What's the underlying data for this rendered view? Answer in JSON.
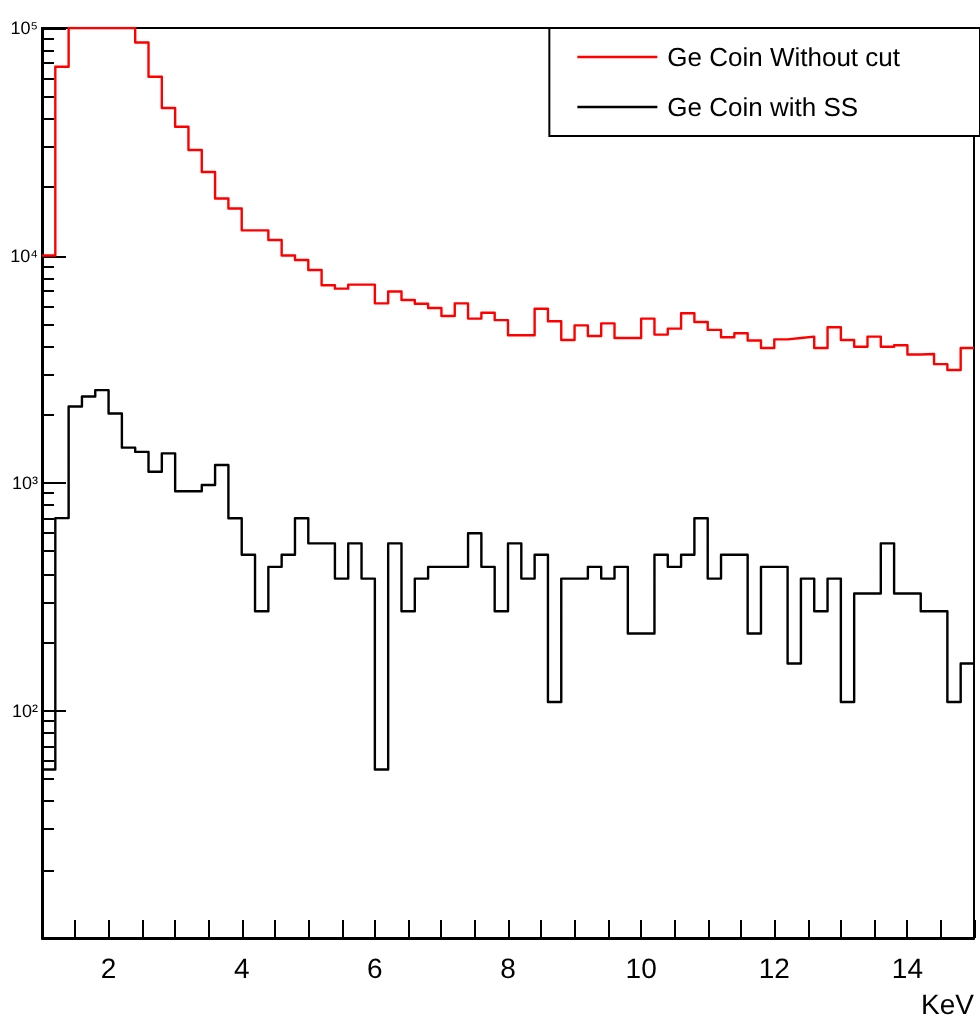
{
  "chart_data": {
    "type": "histogram",
    "xlabel": "KeV",
    "log": "y",
    "legend": "top right",
    "bins": [
      1.0,
      1.2,
      1.4,
      1.6,
      1.8,
      2.0,
      2.2,
      2.4,
      2.6,
      2.8,
      3.0,
      3.2,
      3.4,
      3.6,
      3.8,
      4.0,
      4.2,
      4.4,
      4.6,
      4.8,
      5.0,
      5.2,
      5.4,
      5.6,
      5.8,
      6.0,
      6.2,
      6.4,
      6.6,
      6.8,
      7.0,
      7.2,
      7.4,
      7.6,
      7.8,
      8.0,
      8.2,
      8.4,
      8.6,
      8.8,
      9.0,
      9.2,
      9.4,
      9.6,
      9.8,
      10.0,
      10.2,
      10.4,
      10.6,
      10.8,
      11.0,
      11.2,
      11.4,
      11.6,
      11.8,
      12.0,
      12.2,
      12.4,
      12.6,
      12.8,
      13.0,
      13.2,
      13.4,
      13.6,
      13.8,
      14.0,
      14.2,
      14.4,
      14.6,
      14.8,
      15.0
    ],
    "series": [
      {
        "name": "Ge Coin Without cut",
        "color": "#ff0000",
        "values": [
          10000,
          67600,
          100000,
          100000,
          100000,
          100000,
          100000,
          86300,
          61100,
          44500,
          36800,
          29100,
          23300,
          17800,
          16100,
          12900,
          12900,
          11700,
          10000,
          9550,
          8630,
          7400,
          7150,
          7450,
          7450,
          6160,
          6950,
          6370,
          6140,
          5880,
          5420,
          6160,
          5280,
          5600,
          5200,
          4460,
          4460,
          5830,
          5140,
          4250,
          4930,
          4430,
          5030,
          4340,
          4340,
          5280,
          4490,
          4770,
          5570,
          5100,
          4710,
          4370,
          4550,
          4230,
          3920,
          4280,
          4340,
          4400,
          3920,
          4840,
          4250,
          3970,
          4400,
          3970,
          4030,
          3670,
          3690,
          3330,
          3140,
          3920
        ]
      },
      {
        "name": "Ge Coin with SS",
        "color": "#000000",
        "values": [
          55,
          701,
          2170,
          2400,
          2560,
          2020,
          1430,
          1370,
          1120,
          1350,
          920,
          920,
          980,
          1200,
          700,
          484,
          273,
          428,
          484,
          700,
          543,
          543,
          380,
          543,
          380,
          55,
          543,
          273,
          380,
          428,
          428,
          428,
          601,
          428,
          273,
          543,
          380,
          484,
          109,
          380,
          380,
          428,
          380,
          428,
          218,
          218,
          484,
          428,
          484,
          700,
          380,
          484,
          484,
          218,
          428,
          428,
          161,
          380,
          273,
          380,
          109,
          327,
          327,
          543,
          327,
          327,
          273,
          273,
          109,
          161
        ]
      }
    ],
    "xlim": [
      1,
      15
    ],
    "xticks": [
      2,
      4,
      6,
      8,
      10,
      12,
      14
    ],
    "ylim": [
      10,
      100000
    ],
    "yticks": [
      {
        "value": 100,
        "label": "10²"
      },
      {
        "value": 1000,
        "label": "10³"
      },
      {
        "value": 10000,
        "label": "10⁴"
      },
      {
        "value": 100000,
        "label": "10⁵"
      }
    ]
  }
}
